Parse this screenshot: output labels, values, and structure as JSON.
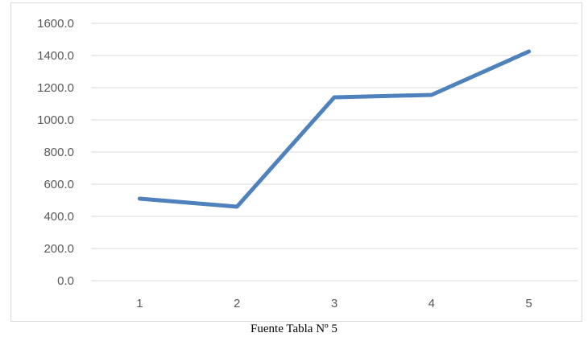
{
  "chart_data": {
    "type": "line",
    "title": "",
    "xlabel": "",
    "ylabel": "",
    "x": [
      "1",
      "2",
      "3",
      "4",
      "5"
    ],
    "series": [
      {
        "values": [
          510,
          460,
          1140,
          1155,
          1425
        ],
        "color": "#4f81bd"
      }
    ],
    "ylim": [
      0,
      1600
    ],
    "yticks": [
      0,
      200,
      400,
      600,
      800,
      1000,
      1200,
      1400,
      1600
    ],
    "ytick_labels": [
      "0.0",
      "200.0",
      "400.0",
      "600.0",
      "800.0",
      "1000.0",
      "1200.0",
      "1400.0",
      "1600.0"
    ],
    "grid": true,
    "legend": "none"
  },
  "source_note": "Fuente Tabla Nº 5"
}
